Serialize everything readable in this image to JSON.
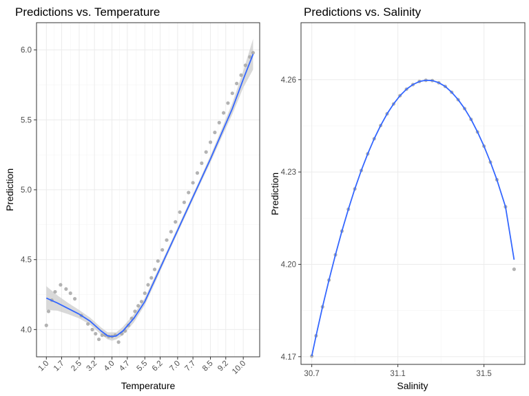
{
  "chart_data": [
    {
      "type": "scatter",
      "title": "Predictions vs. Temperature",
      "xlabel": "Temperature",
      "ylabel": "Prediction",
      "xlim": [
        0.55,
        10.75
      ],
      "ylim": [
        3.805,
        6.195
      ],
      "x_ticks": [
        1.0,
        1.7,
        2.5,
        3.2,
        4.0,
        4.7,
        5.5,
        6.2,
        7.0,
        7.7,
        8.5,
        9.2,
        10.0
      ],
      "x_tick_labels": [
        "1.0",
        "1.7",
        "2.5",
        "3.2",
        "4.0",
        "4.7",
        "5.5",
        "6.2",
        "7.0",
        "7.7",
        "8.5",
        "9.2",
        "10.0"
      ],
      "y_ticks": [
        4.0,
        4.5,
        5.0,
        5.5,
        6.0
      ],
      "y_tick_labels": [
        "4.0",
        "4.5",
        "5.0",
        "5.5",
        "6.0"
      ],
      "grid": true,
      "x_tick_rotation_deg": 45,
      "points": {
        "x": [
          1.0,
          1.1,
          1.25,
          1.4,
          1.65,
          1.9,
          2.1,
          2.3,
          2.6,
          2.9,
          3.1,
          3.25,
          3.4,
          3.55,
          3.7,
          3.85,
          4.0,
          4.15,
          4.3,
          4.45,
          4.6,
          4.75,
          4.9,
          5.05,
          5.2,
          5.35,
          5.5,
          5.65,
          5.8,
          5.95,
          6.1,
          6.3,
          6.5,
          6.7,
          6.9,
          7.1,
          7.3,
          7.5,
          7.7,
          7.9,
          8.1,
          8.3,
          8.5,
          8.7,
          8.9,
          9.1,
          9.3,
          9.5,
          9.7,
          9.9,
          10.1,
          10.3,
          10.45
        ],
        "y": [
          4.03,
          4.13,
          4.21,
          4.27,
          4.32,
          4.29,
          4.26,
          4.22,
          4.1,
          4.04,
          4.0,
          3.97,
          3.93,
          3.96,
          3.96,
          3.95,
          3.95,
          3.96,
          3.91,
          3.97,
          3.99,
          4.03,
          4.08,
          4.13,
          4.17,
          4.2,
          4.26,
          4.32,
          4.37,
          4.43,
          4.49,
          4.57,
          4.64,
          4.7,
          4.77,
          4.84,
          4.91,
          4.98,
          5.05,
          5.12,
          5.19,
          5.27,
          5.34,
          5.41,
          5.48,
          5.55,
          5.62,
          5.69,
          5.76,
          5.82,
          5.89,
          5.95,
          5.98
        ]
      },
      "smooth": {
        "x": [
          1.0,
          1.5,
          2.0,
          2.5,
          3.0,
          3.5,
          3.8,
          4.0,
          4.2,
          4.5,
          5.0,
          5.5,
          6.0,
          6.5,
          7.0,
          7.5,
          8.0,
          8.5,
          9.0,
          9.5,
          10.0,
          10.45
        ],
        "y": [
          4.225,
          4.19,
          4.15,
          4.11,
          4.06,
          3.99,
          3.955,
          3.95,
          3.955,
          3.99,
          4.08,
          4.2,
          4.37,
          4.54,
          4.71,
          4.88,
          5.05,
          5.22,
          5.4,
          5.58,
          5.79,
          5.97
        ],
        "se_lower": [
          4.14,
          4.135,
          4.11,
          4.08,
          4.035,
          3.965,
          3.93,
          3.92,
          3.93,
          3.96,
          4.05,
          4.175,
          4.345,
          4.52,
          4.69,
          4.86,
          5.03,
          5.195,
          5.37,
          5.54,
          5.73,
          5.86
        ],
        "se_upper": [
          4.31,
          4.245,
          4.19,
          4.14,
          4.085,
          4.015,
          3.98,
          3.98,
          3.98,
          4.02,
          4.11,
          4.225,
          4.395,
          4.56,
          4.73,
          4.9,
          5.07,
          5.245,
          5.43,
          5.62,
          5.85,
          6.08
        ]
      },
      "colors": {
        "points": "#a6a6a6",
        "smooth_line": "#3366ff",
        "ribbon": "#cccccc",
        "grid_major": "#ebebeb",
        "grid_minor": "#f4f4f4",
        "panel_border": "#333333"
      }
    },
    {
      "type": "scatter",
      "title": "Predictions vs. Salinity",
      "xlabel": "Salinity",
      "ylabel": "Prediction",
      "xlim": [
        30.65,
        31.69
      ],
      "ylim": [
        4.1675,
        4.2785
      ],
      "x_ticks": [
        30.7,
        31.1,
        31.5
      ],
      "x_tick_labels": [
        "30.7",
        "31.1",
        "31.5"
      ],
      "y_ticks": [
        4.17,
        4.2,
        4.23,
        4.26
      ],
      "y_tick_labels": [
        "4.17",
        "4.20",
        "4.23",
        "4.26"
      ],
      "grid": true,
      "points": {
        "x": [
          30.7,
          30.72,
          30.75,
          30.78,
          30.81,
          30.84,
          30.87,
          30.9,
          30.93,
          30.96,
          30.99,
          31.02,
          31.05,
          31.08,
          31.11,
          31.14,
          31.17,
          31.2,
          31.23,
          31.26,
          31.29,
          31.32,
          31.35,
          31.38,
          31.41,
          31.44,
          31.47,
          31.5,
          31.53,
          31.56,
          31.6,
          31.64
        ],
        "y": [
          4.1702,
          4.1768,
          4.1862,
          4.1949,
          4.2031,
          4.2108,
          4.2179,
          4.2245,
          4.2305,
          4.2359,
          4.2408,
          4.2451,
          4.2489,
          4.2521,
          4.2548,
          4.2569,
          4.2584,
          4.2594,
          4.2598,
          4.2597,
          4.259,
          4.2578,
          4.2559,
          4.2535,
          4.2506,
          4.2471,
          4.243,
          4.2384,
          4.2332,
          4.2275,
          4.2187,
          4.1984
        ]
      },
      "smooth": {
        "x": [
          30.7,
          30.72,
          30.75,
          30.78,
          30.81,
          30.84,
          30.87,
          30.9,
          30.93,
          30.96,
          30.99,
          31.02,
          31.05,
          31.08,
          31.11,
          31.14,
          31.17,
          31.2,
          31.23,
          31.26,
          31.29,
          31.32,
          31.35,
          31.38,
          31.41,
          31.44,
          31.47,
          31.5,
          31.53,
          31.56,
          31.6,
          31.64
        ],
        "y": [
          4.1702,
          4.1768,
          4.1862,
          4.1949,
          4.2031,
          4.2108,
          4.2179,
          4.2245,
          4.2305,
          4.2359,
          4.2408,
          4.2451,
          4.2489,
          4.2521,
          4.2548,
          4.2569,
          4.2584,
          4.2594,
          4.2598,
          4.2597,
          4.259,
          4.2578,
          4.2559,
          4.2535,
          4.2506,
          4.2471,
          4.243,
          4.2384,
          4.2332,
          4.2275,
          4.2187,
          4.2015
        ]
      },
      "colors": {
        "points": "#a6a6a6",
        "smooth_line": "#3366ff",
        "grid_major": "#ebebeb",
        "grid_minor": "#f4f4f4",
        "panel_border": "#333333"
      }
    }
  ]
}
